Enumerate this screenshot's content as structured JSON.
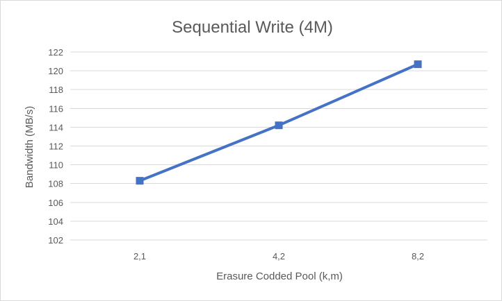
{
  "chart_data": {
    "type": "line",
    "title": "Sequential Write (4M)",
    "xlabel": "Erasure Codded Pool (k,m)",
    "ylabel": "Bandwidth (MB/s)",
    "categories": [
      "2,1",
      "4,2",
      "8,2"
    ],
    "series": [
      {
        "values": [
          108.3,
          114.2,
          120.7
        ],
        "color": "#4472c4",
        "marker": "square"
      }
    ],
    "ylim": [
      102,
      122
    ],
    "yticks": [
      102,
      104,
      106,
      108,
      110,
      112,
      114,
      116,
      118,
      120,
      122
    ],
    "grid": true,
    "legend": "none"
  }
}
